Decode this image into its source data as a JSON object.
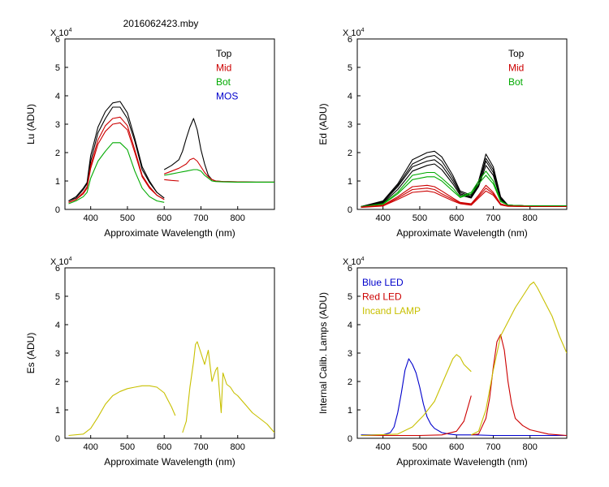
{
  "figure_title": "2016062423.mby",
  "chart_data": [
    {
      "type": "line",
      "title": "",
      "xlabel": "Approximate Wavelength (nm)",
      "ylabel": "Lu (ADU)",
      "multiplier": "X 10",
      "multiplier_exp": "4",
      "xlim": [
        330,
        900
      ],
      "ylim": [
        0,
        6
      ],
      "xticks": [
        400,
        500,
        600,
        700,
        800
      ],
      "yticks": [
        0,
        1,
        2,
        3,
        4,
        5,
        6
      ],
      "legend": [
        "Top",
        "Mid",
        "Bot",
        "MOS"
      ],
      "legend_colors": [
        "#000000",
        "#cc0000",
        "#00aa00",
        "#0000cc"
      ],
      "series": [
        {
          "name": "Top",
          "color": "#000000",
          "x": [
            340,
            360,
            380,
            390,
            400,
            420,
            440,
            460,
            480,
            500,
            520,
            540,
            560,
            580,
            600
          ],
          "y": [
            0.3,
            0.45,
            0.75,
            0.95,
            1.9,
            2.9,
            3.45,
            3.75,
            3.8,
            3.4,
            2.5,
            1.5,
            1.0,
            0.6,
            0.4
          ]
        },
        {
          "name": "Top",
          "color": "#000000",
          "x": [
            340,
            360,
            380,
            390,
            400,
            420,
            440,
            460,
            480,
            500,
            520,
            540,
            560,
            580,
            600
          ],
          "y": [
            0.3,
            0.4,
            0.7,
            0.9,
            1.7,
            2.7,
            3.2,
            3.6,
            3.6,
            3.2,
            2.4,
            1.4,
            0.95,
            0.6,
            0.4
          ]
        },
        {
          "name": "Mid",
          "color": "#cc0000",
          "x": [
            340,
            360,
            380,
            390,
            400,
            420,
            440,
            460,
            480,
            500,
            520,
            540,
            560,
            580,
            600
          ],
          "y": [
            0.25,
            0.35,
            0.6,
            0.8,
            1.55,
            2.45,
            2.95,
            3.2,
            3.25,
            2.95,
            2.1,
            1.2,
            0.8,
            0.5,
            0.35
          ]
        },
        {
          "name": "Mid",
          "color": "#cc0000",
          "x": [
            340,
            360,
            380,
            390,
            400,
            420,
            440,
            460,
            480,
            500,
            520,
            540,
            560,
            580,
            600
          ],
          "y": [
            0.25,
            0.35,
            0.55,
            0.75,
            1.45,
            2.3,
            2.75,
            3.0,
            3.05,
            2.8,
            2.0,
            1.15,
            0.75,
            0.5,
            0.35
          ]
        },
        {
          "name": "Bot",
          "color": "#00aa00",
          "x": [
            340,
            360,
            380,
            390,
            400,
            420,
            440,
            460,
            480,
            500,
            520,
            540,
            560,
            580,
            600
          ],
          "y": [
            0.2,
            0.3,
            0.45,
            0.6,
            1.1,
            1.7,
            2.05,
            2.35,
            2.35,
            2.1,
            1.35,
            0.75,
            0.45,
            0.3,
            0.25
          ]
        },
        {
          "name": "Top",
          "color": "#000000",
          "x": [
            600,
            620,
            640,
            650,
            660,
            670,
            680,
            690,
            700,
            710,
            720,
            730,
            740,
            760,
            800,
            850,
            900
          ],
          "y": [
            1.4,
            1.55,
            1.75,
            2.05,
            2.5,
            2.9,
            3.2,
            2.8,
            2.1,
            1.6,
            1.2,
            1.05,
            1.0,
            0.98,
            0.97,
            0.96,
            0.96
          ]
        },
        {
          "name": "Mid",
          "color": "#cc0000",
          "x": [
            600,
            620,
            640,
            660,
            670,
            680,
            690,
            700,
            710,
            720,
            730,
            740,
            760,
            800,
            850,
            900
          ],
          "y": [
            1.25,
            1.35,
            1.45,
            1.6,
            1.75,
            1.8,
            1.7,
            1.5,
            1.3,
            1.15,
            1.05,
            1.0,
            0.98,
            0.97,
            0.96,
            0.96
          ]
        },
        {
          "name": "Bot",
          "color": "#00aa00",
          "x": [
            600,
            620,
            640,
            660,
            680,
            690,
            700,
            710,
            720,
            730,
            740,
            760,
            800,
            850,
            900
          ],
          "y": [
            1.2,
            1.25,
            1.3,
            1.35,
            1.4,
            1.4,
            1.35,
            1.2,
            1.1,
            1.0,
            0.98,
            0.97,
            0.96,
            0.96,
            0.96
          ]
        },
        {
          "name": "Mid",
          "color": "#cc0000",
          "x": [
            600,
            620,
            640
          ],
          "y": [
            1.05,
            1.02,
            1.0
          ]
        }
      ]
    },
    {
      "type": "line",
      "title": "",
      "xlabel": "Approximate Wavelength (nm)",
      "ylabel": "Ed  (ADU)",
      "multiplier": "X 10",
      "multiplier_exp": "4",
      "xlim": [
        330,
        900
      ],
      "ylim": [
        0,
        6
      ],
      "xticks": [
        400,
        500,
        600,
        700,
        800
      ],
      "yticks": [
        0,
        1,
        2,
        3,
        4,
        5,
        6
      ],
      "legend": [
        "Top",
        "Mid",
        "Bot"
      ],
      "legend_colors": [
        "#000000",
        "#cc0000",
        "#00aa00"
      ],
      "series": [
        {
          "name": "Top",
          "color": "#000000",
          "x": [
            340,
            400,
            440,
            480,
            520,
            540,
            560,
            590,
            610,
            640,
            660,
            680,
            700,
            720,
            740,
            800,
            900
          ],
          "y": [
            0.1,
            0.3,
            0.9,
            1.75,
            2.0,
            2.05,
            1.85,
            1.2,
            0.65,
            0.5,
            1.0,
            1.95,
            1.5,
            0.45,
            0.15,
            0.12,
            0.12
          ]
        },
        {
          "name": "Top",
          "color": "#000000",
          "x": [
            340,
            400,
            440,
            480,
            520,
            540,
            560,
            590,
            610,
            640,
            660,
            680,
            700,
            720,
            740,
            800,
            900
          ],
          "y": [
            0.1,
            0.28,
            0.85,
            1.6,
            1.85,
            1.9,
            1.7,
            1.1,
            0.6,
            0.45,
            0.9,
            1.8,
            1.4,
            0.4,
            0.15,
            0.12,
            0.12
          ]
        },
        {
          "name": "Top",
          "color": "#000000",
          "x": [
            340,
            400,
            440,
            480,
            520,
            540,
            560,
            590,
            610,
            640,
            660,
            680,
            700,
            720,
            740,
            800,
            900
          ],
          "y": [
            0.1,
            0.25,
            0.8,
            1.5,
            1.7,
            1.75,
            1.55,
            1.0,
            0.55,
            0.42,
            0.85,
            1.7,
            1.3,
            0.38,
            0.15,
            0.12,
            0.12
          ]
        },
        {
          "name": "Top",
          "color": "#000000",
          "x": [
            340,
            400,
            440,
            480,
            520,
            540,
            560,
            590,
            610,
            640,
            660,
            680,
            700,
            720,
            740,
            800,
            900
          ],
          "y": [
            0.1,
            0.22,
            0.7,
            1.35,
            1.55,
            1.6,
            1.4,
            0.9,
            0.5,
            0.4,
            0.8,
            1.55,
            1.2,
            0.35,
            0.15,
            0.12,
            0.12
          ]
        },
        {
          "name": "Bot",
          "color": "#00aa00",
          "x": [
            340,
            400,
            440,
            480,
            520,
            540,
            560,
            590,
            610,
            640,
            660,
            680,
            700,
            720,
            740,
            800,
            900
          ],
          "y": [
            0.1,
            0.2,
            0.6,
            1.2,
            1.3,
            1.3,
            1.1,
            0.75,
            0.45,
            0.6,
            1.0,
            1.35,
            1.0,
            0.3,
            0.15,
            0.12,
            0.12
          ]
        },
        {
          "name": "Bot",
          "color": "#00aa00",
          "x": [
            340,
            400,
            440,
            480,
            520,
            540,
            560,
            590,
            610,
            640,
            660,
            680,
            700,
            720,
            740,
            800,
            900
          ],
          "y": [
            0.1,
            0.18,
            0.55,
            1.05,
            1.15,
            1.15,
            1.0,
            0.65,
            0.42,
            0.55,
            0.9,
            1.2,
            0.9,
            0.28,
            0.15,
            0.12,
            0.12
          ]
        },
        {
          "name": "Mid",
          "color": "#cc0000",
          "x": [
            340,
            400,
            440,
            480,
            520,
            540,
            560,
            590,
            610,
            640,
            660,
            680,
            700,
            720,
            740,
            800,
            900
          ],
          "y": [
            0.08,
            0.15,
            0.45,
            0.8,
            0.85,
            0.8,
            0.65,
            0.4,
            0.25,
            0.2,
            0.5,
            0.85,
            0.6,
            0.2,
            0.12,
            0.1,
            0.1
          ]
        },
        {
          "name": "Mid",
          "color": "#cc0000",
          "x": [
            340,
            400,
            440,
            480,
            520,
            540,
            560,
            590,
            610,
            640,
            660,
            680,
            700,
            720,
            740,
            800,
            900
          ],
          "y": [
            0.08,
            0.13,
            0.4,
            0.7,
            0.75,
            0.7,
            0.55,
            0.35,
            0.22,
            0.18,
            0.45,
            0.75,
            0.55,
            0.18,
            0.12,
            0.1,
            0.1
          ]
        },
        {
          "name": "Mid",
          "color": "#cc0000",
          "x": [
            340,
            400,
            440,
            480,
            520,
            540,
            560,
            590,
            610,
            640,
            660,
            680,
            700,
            720,
            740,
            800,
            900
          ],
          "y": [
            0.07,
            0.12,
            0.35,
            0.6,
            0.65,
            0.6,
            0.48,
            0.3,
            0.2,
            0.15,
            0.4,
            0.65,
            0.5,
            0.16,
            0.11,
            0.1,
            0.1
          ]
        }
      ]
    },
    {
      "type": "line",
      "title": "",
      "xlabel": "Approximate Wavelength (nm)",
      "ylabel": "Es  (ADU)",
      "multiplier": "X 10",
      "multiplier_exp": "4",
      "xlim": [
        330,
        900
      ],
      "ylim": [
        0,
        6
      ],
      "xticks": [
        400,
        500,
        600,
        700,
        800
      ],
      "yticks": [
        0,
        1,
        2,
        3,
        4,
        5,
        6
      ],
      "legend": [],
      "legend_colors": [],
      "series": [
        {
          "name": "Es",
          "color": "#c8c000",
          "x": [
            340,
            380,
            400,
            420,
            440,
            460,
            480,
            500,
            520,
            540,
            560,
            580,
            600,
            610,
            620,
            630
          ],
          "y": [
            0.1,
            0.15,
            0.35,
            0.75,
            1.2,
            1.5,
            1.65,
            1.75,
            1.8,
            1.85,
            1.85,
            1.8,
            1.6,
            1.35,
            1.1,
            0.8
          ]
        },
        {
          "name": "Es",
          "color": "#c8c000",
          "x": [
            650,
            660,
            670,
            680,
            685,
            690,
            700,
            710,
            720,
            730,
            740,
            745,
            750,
            755,
            760,
            770,
            780,
            790,
            800,
            820,
            840,
            860,
            880,
            900
          ],
          "y": [
            0.2,
            0.6,
            1.8,
            2.7,
            3.3,
            3.4,
            3.0,
            2.6,
            3.1,
            2.0,
            2.4,
            2.5,
            1.7,
            0.9,
            2.3,
            1.9,
            1.8,
            1.6,
            1.5,
            1.2,
            0.9,
            0.7,
            0.5,
            0.2
          ]
        }
      ]
    },
    {
      "type": "line",
      "title": "",
      "xlabel": "Approximate Wavelength (nm)",
      "ylabel": "Internal Calib. Lamps (ADU)",
      "multiplier": "X 10",
      "multiplier_exp": "4",
      "xlim": [
        330,
        900
      ],
      "ylim": [
        0,
        6
      ],
      "xticks": [
        400,
        500,
        600,
        700,
        800
      ],
      "yticks": [
        0,
        1,
        2,
        3,
        4,
        5,
        6
      ],
      "legend": [
        "Blue LED",
        "Red LED",
        "Incand LAMP"
      ],
      "legend_colors": [
        "#0000cc",
        "#cc0000",
        "#c8c000"
      ],
      "series": [
        {
          "name": "Blue LED",
          "color": "#0000cc",
          "x": [
            340,
            400,
            420,
            430,
            440,
            450,
            460,
            470,
            480,
            490,
            500,
            510,
            520,
            530,
            540,
            560,
            580,
            600,
            650,
            700,
            800,
            900
          ],
          "y": [
            0.12,
            0.12,
            0.2,
            0.4,
            0.9,
            1.6,
            2.4,
            2.8,
            2.6,
            2.3,
            1.8,
            1.2,
            0.75,
            0.5,
            0.35,
            0.2,
            0.15,
            0.12,
            0.12,
            0.1,
            0.1,
            0.1
          ]
        },
        {
          "name": "Red LED",
          "color": "#cc0000",
          "x": [
            340,
            500,
            560,
            600,
            620,
            640
          ],
          "y": [
            0.1,
            0.1,
            0.12,
            0.25,
            0.6,
            1.5
          ]
        },
        {
          "name": "Red LED",
          "color": "#cc0000",
          "x": [
            640,
            660,
            680,
            690,
            700,
            710,
            720,
            730,
            740,
            750,
            760,
            780,
            800,
            850,
            900
          ],
          "y": [
            0.12,
            0.15,
            0.7,
            1.4,
            2.5,
            3.4,
            3.65,
            3.1,
            2.0,
            1.2,
            0.7,
            0.45,
            0.3,
            0.15,
            0.1
          ]
        },
        {
          "name": "Incand LAMP",
          "color": "#c8c000",
          "x": [
            340,
            440,
            480,
            510,
            540,
            570,
            590,
            600,
            610,
            620,
            640
          ],
          "y": [
            0.1,
            0.15,
            0.4,
            0.8,
            1.3,
            2.2,
            2.8,
            2.95,
            2.85,
            2.6,
            2.35
          ]
        },
        {
          "name": "Incand LAMP",
          "color": "#c8c000",
          "x": [
            640,
            660,
            680,
            700,
            720,
            740,
            760,
            780,
            800,
            810,
            820,
            840,
            860,
            880,
            900
          ],
          "y": [
            0.12,
            0.25,
            1.0,
            2.4,
            3.6,
            4.1,
            4.6,
            5.0,
            5.4,
            5.5,
            5.3,
            4.8,
            4.3,
            3.6,
            3.0
          ]
        }
      ]
    }
  ]
}
